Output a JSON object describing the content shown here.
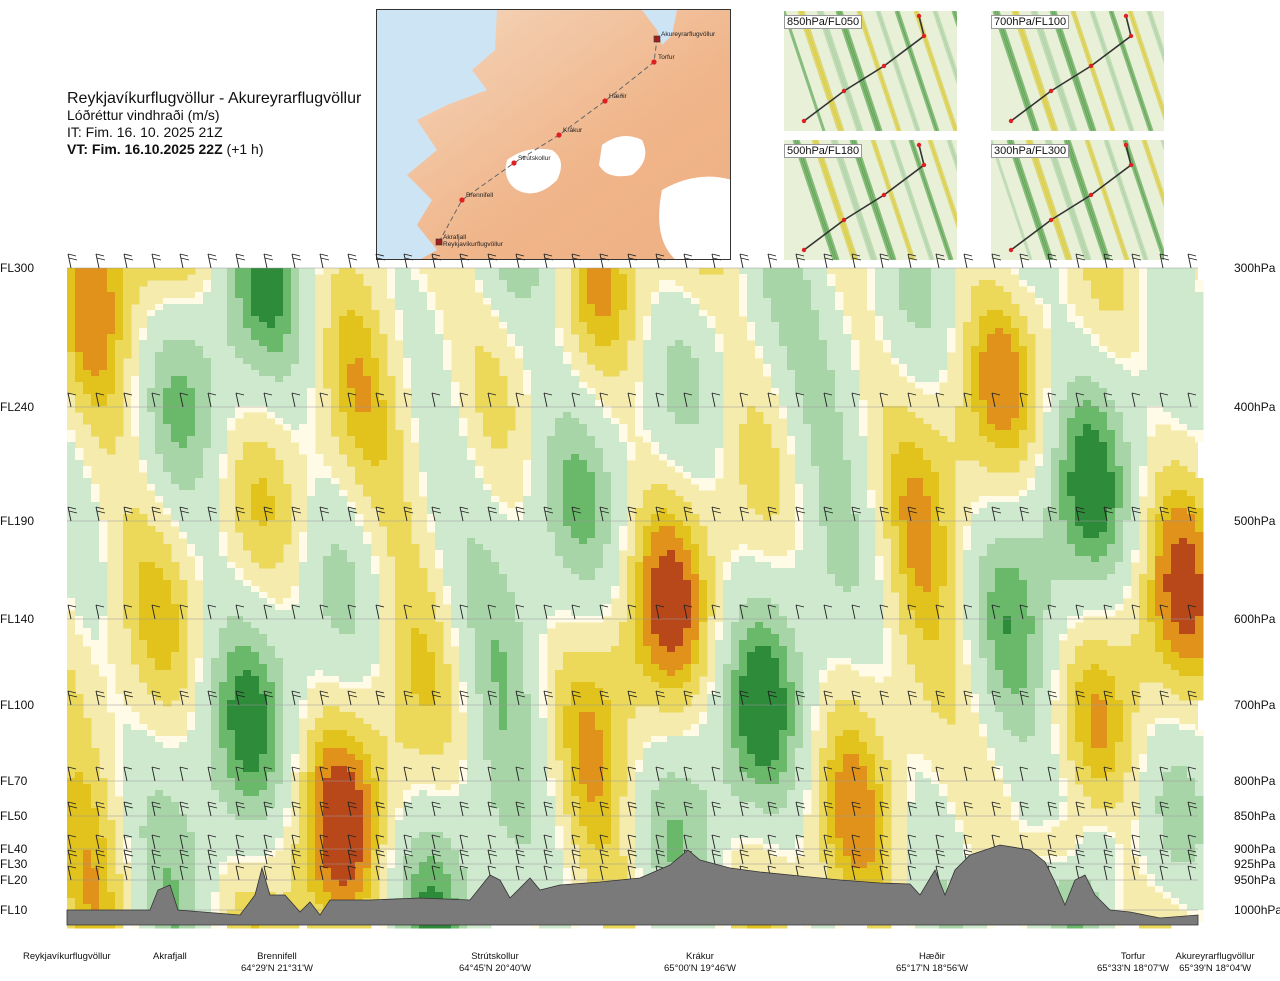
{
  "header": {
    "route": "Reykjavíkurflugvöllur - Akureyrarflugvöllur",
    "parameter": "Lóðréttur vindhraði (m/s)",
    "issue_time": "IT: Fim. 16. 10. 2025 21Z",
    "valid_bold": "VT: Fim. 16.10.2025 22Z",
    "valid_offset": "(+1 h)"
  },
  "map": {
    "waypoints": [
      {
        "name": "Akureyrarflugvöllur"
      },
      {
        "name": "Torfur"
      },
      {
        "name": "Hæðir"
      },
      {
        "name": "Krákur"
      },
      {
        "name": "Strútskollur"
      },
      {
        "name": "Brennifell"
      },
      {
        "name": "Akrafjall"
      },
      {
        "name": "Reykjavíkurflugvöllur"
      }
    ]
  },
  "thumbnails": [
    {
      "label": "850hPa/FL050"
    },
    {
      "label": "700hPa/FL100"
    },
    {
      "label": "500hPa/FL180"
    },
    {
      "label": "300hPa/FL300"
    }
  ],
  "chart_data": {
    "type": "heatmap",
    "title": "Reykjavíkurflugvöllur - Akureyrarflugvöllur",
    "subtitle": "Lóðréttur vindhraði (m/s)",
    "y_left_labels": [
      "FL300",
      "FL240",
      "FL190",
      "FL140",
      "FL100",
      "FL70",
      "FL50",
      "FL40",
      "FL30",
      "FL20",
      "FL10"
    ],
    "y_right_labels": [
      "300hPa",
      "400hPa",
      "500hPa",
      "600hPa",
      "700hPa",
      "800hPa",
      "850hPa",
      "900hPa",
      "925hPa",
      "950hPa",
      "1000hPa"
    ],
    "x_locations": [
      {
        "name": "Reykjavíkurflugvöllur",
        "coord": ""
      },
      {
        "name": "Akrafjall",
        "coord": ""
      },
      {
        "name": "Brennifell",
        "coord": "64°29'N 21°31'W"
      },
      {
        "name": "Strútskollur",
        "coord": "64°45'N 20°40'W"
      },
      {
        "name": "Krákur",
        "coord": "65°00'N 19°46'W"
      },
      {
        "name": "Hæðir",
        "coord": "65°17'N 18°56'W"
      },
      {
        "name": "Torfur",
        "coord": "65°33'N 18°07'W"
      },
      {
        "name": "Akureyrarflugvöllur",
        "coord": "65°39'N 18°04'W"
      }
    ],
    "colors": {
      "strong_down": "#2e8b3a",
      "down": "#6ab86a",
      "weak_down": "#a8d5a8",
      "slight_down": "#cfe9cf",
      "near_zero": "#fffbe6",
      "slight_up": "#f5ebad",
      "weak_up": "#ecd95a",
      "up": "#e2c21c",
      "strong_up": "#e0921a",
      "very_strong_up": "#b8481a",
      "terrain": "#7a7a7a"
    }
  }
}
